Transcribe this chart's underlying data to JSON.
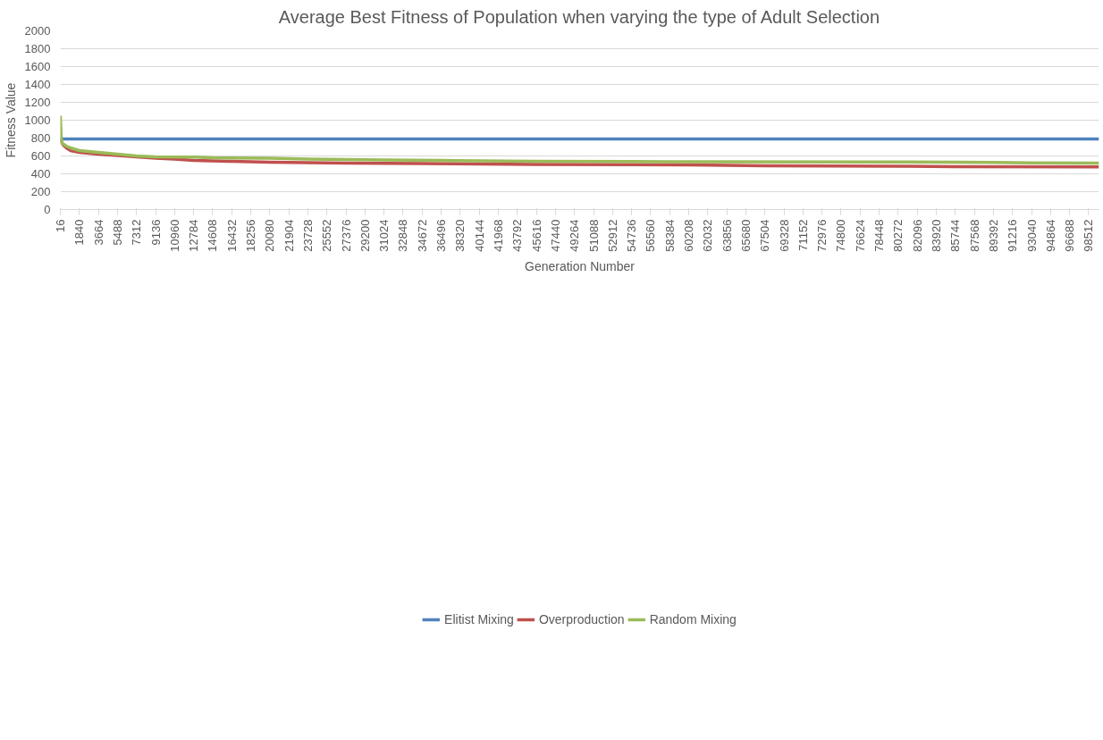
{
  "chart_data": {
    "type": "line",
    "title": "Average Best Fitness of Population when varying the type of Adult Selection",
    "xlabel": "Generation Number",
    "ylabel": "Fitness Value",
    "xlim": [
      16,
      99500
    ],
    "ylim": [
      0,
      2000
    ],
    "yticks": [
      0,
      200,
      400,
      600,
      800,
      1000,
      1200,
      1400,
      1600,
      1800,
      2000
    ],
    "xticks": [
      16,
      1840,
      3664,
      5488,
      7312,
      9136,
      10960,
      12784,
      14608,
      16432,
      18256,
      20080,
      21904,
      23728,
      25552,
      27376,
      29200,
      31024,
      32848,
      34672,
      36496,
      38320,
      40144,
      41968,
      43792,
      45616,
      47440,
      49264,
      51088,
      52912,
      54736,
      56560,
      58384,
      60208,
      62032,
      63856,
      65680,
      67504,
      69328,
      71152,
      72976,
      74800,
      76624,
      78448,
      80272,
      82096,
      83920,
      85744,
      87568,
      89392,
      91216,
      93040,
      94864,
      96688,
      98512
    ],
    "grid": "y",
    "legend": "bottom",
    "marker": "none",
    "line_style": "solid",
    "series": [
      {
        "name": "Elitist Mixing",
        "color": "#4f81bd",
        "x": [
          16,
          99500
        ],
        "values": [
          790,
          790
        ]
      },
      {
        "name": "Overproduction",
        "color": "#c0504d",
        "x": [
          16,
          300,
          600,
          1000,
          1840,
          3664,
          5488,
          7312,
          9136,
          10960,
          12784,
          16432,
          20080,
          23728,
          27376,
          34672,
          40144,
          45616,
          54736,
          60208,
          63856,
          67504,
          80272,
          85744,
          99500
        ],
        "values": [
          780,
          720,
          690,
          660,
          640,
          620,
          605,
          590,
          575,
          565,
          550,
          540,
          530,
          525,
          520,
          515,
          510,
          505,
          503,
          500,
          495,
          490,
          485,
          480,
          478
        ]
      },
      {
        "name": "Random Mixing",
        "color": "#9bbb59",
        "x": [
          16,
          100,
          200,
          600,
          1000,
          1840,
          3664,
          5488,
          7312,
          9136,
          12784,
          14608,
          20080,
          23728,
          27376,
          31024,
          36496,
          40144,
          45616,
          54736,
          58384,
          78448,
          85744,
          89392,
          93040,
          99500
        ],
        "values": [
          1050,
          800,
          740,
          710,
          690,
          660,
          640,
          620,
          600,
          590,
          588,
          580,
          575,
          565,
          560,
          555,
          550,
          545,
          540,
          538,
          535,
          533,
          530,
          528,
          522,
          520
        ]
      }
    ]
  }
}
